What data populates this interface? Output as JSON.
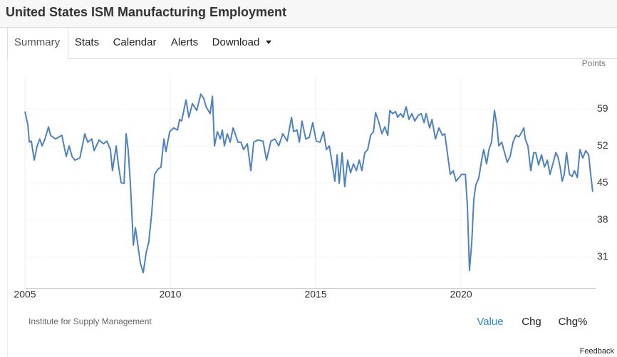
{
  "header": {
    "title": "United States ISM Manufacturing Employment"
  },
  "tabs": [
    "Summary",
    "Stats",
    "Calendar",
    "Alerts",
    "Download"
  ],
  "chart_data": {
    "type": "line",
    "y_unit_label": "Points",
    "x": [
      2005.0,
      2005.1,
      2005.15,
      2005.22,
      2005.32,
      2005.42,
      2005.51,
      2005.59,
      2005.69,
      2005.81,
      2005.88,
      2006.05,
      2006.27,
      2006.42,
      2006.52,
      2006.62,
      2006.72,
      2006.89,
      2007.06,
      2007.16,
      2007.3,
      2007.38,
      2007.55,
      2007.7,
      2007.82,
      2007.94,
      2008.01,
      2008.14,
      2008.21,
      2008.31,
      2008.41,
      2008.48,
      2008.55,
      2008.63,
      2008.73,
      2008.8,
      2008.87,
      2008.97,
      2009.07,
      2009.17,
      2009.26,
      2009.36,
      2009.46,
      2009.58,
      2009.68,
      2009.78,
      2009.85,
      2009.98,
      2010.12,
      2010.25,
      2010.32,
      2010.39,
      2010.54,
      2010.64,
      2010.76,
      2010.91,
      2011.05,
      2011.15,
      2011.23,
      2011.37,
      2011.45,
      2011.52,
      2011.62,
      2011.72,
      2011.79,
      2011.86,
      2011.96,
      2012.06,
      2012.16,
      2012.25,
      2012.33,
      2012.43,
      2012.52,
      2012.65,
      2012.77,
      2012.87,
      2013.01,
      2013.19,
      2013.31,
      2013.46,
      2013.6,
      2013.73,
      2013.87,
      2014.02,
      2014.17,
      2014.24,
      2014.36,
      2014.44,
      2014.53,
      2014.66,
      2014.78,
      2014.9,
      2015.02,
      2015.15,
      2015.27,
      2015.37,
      2015.47,
      2015.56,
      2015.66,
      2015.74,
      2015.81,
      2015.91,
      2016.0,
      2016.1,
      2016.2,
      2016.3,
      2016.4,
      2016.5,
      2016.59,
      2016.69,
      2016.79,
      2016.89,
      2016.99,
      2017.06,
      2017.16,
      2017.28,
      2017.38,
      2017.48,
      2017.55,
      2017.65,
      2017.75,
      2017.82,
      2017.92,
      2018.01,
      2018.11,
      2018.21,
      2018.31,
      2018.41,
      2018.53,
      2018.63,
      2018.73,
      2018.8,
      2018.92,
      2019.0,
      2019.12,
      2019.24,
      2019.36,
      2019.44,
      2019.53,
      2019.63,
      2019.73,
      2019.83,
      2019.93,
      2020.02,
      2020.15,
      2020.22,
      2020.29,
      2020.37,
      2020.44,
      2020.51,
      2020.61,
      2020.71,
      2020.78,
      2020.88,
      2020.96,
      2021.05,
      2021.15,
      2021.23,
      2021.3,
      2021.4,
      2021.5,
      2021.59,
      2021.69,
      2021.79,
      2021.89,
      2021.99,
      2022.06,
      2022.16,
      2022.21,
      2022.3,
      2022.4,
      2022.5,
      2022.57,
      2022.67,
      2022.77,
      2022.87,
      2022.97,
      2023.06,
      2023.16,
      2023.26,
      2023.33,
      2023.41,
      2023.48,
      2023.55,
      2023.63,
      2023.73,
      2023.82,
      2023.9,
      2024.0,
      2024.09,
      2024.19,
      2024.29,
      2024.39,
      2024.46,
      2024.53
    ],
    "series": [
      {
        "name": "ISM Manufacturing Employment",
        "color": "#4f81bd",
        "values": [
          58.5,
          56.0,
          52.7,
          52.9,
          49.3,
          52.0,
          53.3,
          52.0,
          53.3,
          55.6,
          54.0,
          53.3,
          54.0,
          50.0,
          52.0,
          50.0,
          49.3,
          49.7,
          54.3,
          52.7,
          53.3,
          51.1,
          53.1,
          52.4,
          52.9,
          51.3,
          47.3,
          52.0,
          48.6,
          45.0,
          44.9,
          54.3,
          51.3,
          44.6,
          33.2,
          36.5,
          33.8,
          29.8,
          28.0,
          31.8,
          33.8,
          39.2,
          46.6,
          47.6,
          48.0,
          53.3,
          50.9,
          54.7,
          55.4,
          55.0,
          57.0,
          56.7,
          60.7,
          57.4,
          60.0,
          58.7,
          61.8,
          61.0,
          59.4,
          58.1,
          61.4,
          52.0,
          54.7,
          53.3,
          55.0,
          52.0,
          54.3,
          52.7,
          55.4,
          54.0,
          52.7,
          52.7,
          51.3,
          52.4,
          47.3,
          52.7,
          53.1,
          52.9,
          49.3,
          52.9,
          53.3,
          52.0,
          54.3,
          52.9,
          57.4,
          54.7,
          55.0,
          52.7,
          56.7,
          53.3,
          53.6,
          56.4,
          52.9,
          52.7,
          54.7,
          51.3,
          52.0,
          48.9,
          45.3,
          50.3,
          44.9,
          50.7,
          44.3,
          49.3,
          46.9,
          48.6,
          47.3,
          49.3,
          47.3,
          50.7,
          51.3,
          54.0,
          54.7,
          58.3,
          56.7,
          54.3,
          55.6,
          54.0,
          58.7,
          58.1,
          58.5,
          57.4,
          58.1,
          57.4,
          59.4,
          57.0,
          58.1,
          56.7,
          57.8,
          58.1,
          56.4,
          58.1,
          55.4,
          57.0,
          53.3,
          55.4,
          54.0,
          54.3,
          50.7,
          46.6,
          47.3,
          45.3,
          46.0,
          46.6,
          46.6,
          40.6,
          28.4,
          33.8,
          41.9,
          44.6,
          45.9,
          49.3,
          51.3,
          48.6,
          51.3,
          52.7,
          58.7,
          56.0,
          52.0,
          52.7,
          50.7,
          48.9,
          50.0,
          52.7,
          54.0,
          53.7,
          54.3,
          55.4,
          53.3,
          52.0,
          47.3,
          50.7,
          50.7,
          48.4,
          50.3,
          48.0,
          49.3,
          46.6,
          48.6,
          50.7,
          50.0,
          48.0,
          45.3,
          46.6,
          50.7,
          46.6,
          46.2,
          47.3,
          46.0,
          51.3,
          49.7,
          51.1,
          50.3,
          46.6,
          43.3
        ]
      }
    ],
    "xlim": [
      2005,
      2024.63
    ],
    "xticks": [
      2005,
      2010,
      2015,
      2020
    ],
    "ylim": [
      25.1,
      64.8
    ],
    "yticks": [
      31,
      38,
      45,
      52,
      59
    ],
    "grid": true
  },
  "source": "Institute for Supply Management",
  "view_buttons": [
    "Value",
    "Chg",
    "Chg%"
  ],
  "feedback": "Feedback"
}
